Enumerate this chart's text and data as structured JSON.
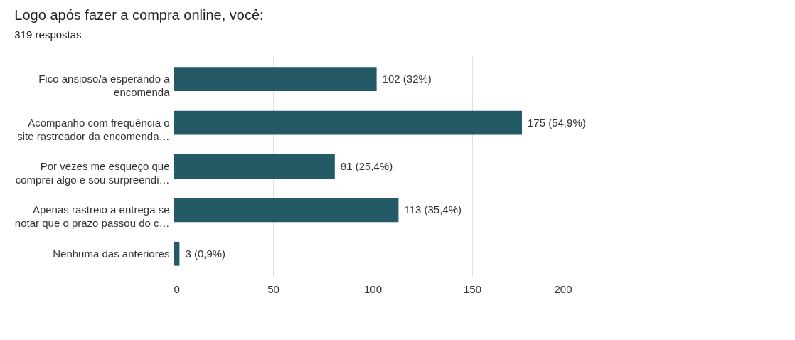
{
  "chart_data": {
    "type": "bar",
    "orientation": "horizontal",
    "title": "Logo após fazer a compra online, você:",
    "subtitle": "319 respostas",
    "categories": [
      "Fico ansioso/a esperando a\nencomenda",
      "Acompanho com frequência o\nsite rastreador da encomenda…",
      "Por vezes me esqueço que\ncomprei algo e sou surpreendi…",
      "Apenas rastreio a entrega se\nnotar que o prazo passou do c…",
      "Nenhuma das anteriores"
    ],
    "values": [
      102,
      175,
      81,
      113,
      3
    ],
    "value_labels": [
      "102 (32%)",
      "175 (54,9%)",
      "81 (25,4%)",
      "113 (35,4%)",
      "3 (0,9%)"
    ],
    "color": "#245a66",
    "xlim": [
      0,
      200
    ],
    "xticks": [
      0,
      50,
      100,
      150,
      200
    ],
    "grid": "x"
  }
}
